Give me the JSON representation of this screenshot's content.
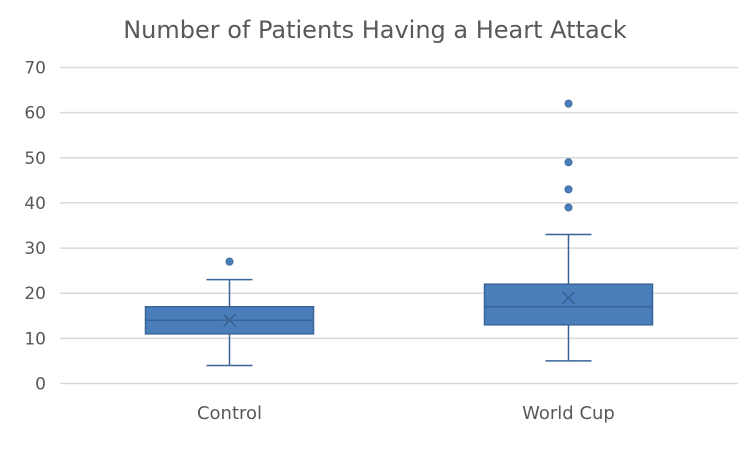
{
  "chart_data": {
    "type": "boxplot",
    "title": "Number of Patients Having a Heart Attack",
    "xlabel": "",
    "ylabel": "",
    "ylim": [
      0,
      70
    ],
    "yticks": [
      "0",
      "10",
      "20",
      "30",
      "40",
      "50",
      "60",
      "70"
    ],
    "grid": true,
    "categories": [
      "Control",
      "World Cup"
    ],
    "boxes": [
      {
        "min": 4,
        "q1": 11,
        "median": 14,
        "q3": 17,
        "max": 23,
        "mean": 14,
        "outliers": [
          27
        ]
      },
      {
        "min": 5,
        "q1": 13,
        "median": 17,
        "q3": 22,
        "max": 33,
        "mean": 19,
        "outliers": [
          39,
          43,
          49,
          62
        ]
      }
    ],
    "colors": {
      "box_fill": "#4a7ebb",
      "box_stroke": "#3a6497",
      "whisker": "#3a6497",
      "outlier": "#4a7ebb"
    }
  }
}
